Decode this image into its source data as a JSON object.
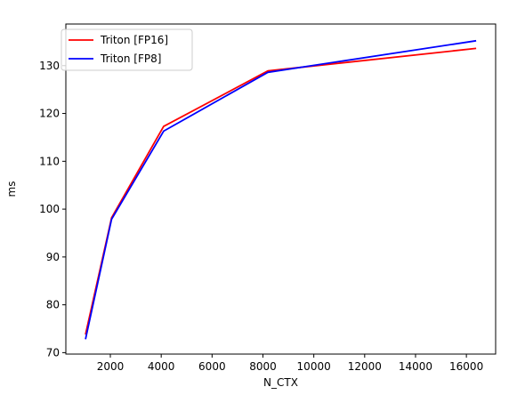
{
  "chart_data": {
    "type": "line",
    "title": "",
    "xlabel": "N_CTX",
    "ylabel": "ms",
    "xlim": [
      250,
      17150
    ],
    "ylim": [
      69.7,
      138.7
    ],
    "xticks": [
      2000,
      4000,
      6000,
      8000,
      10000,
      12000,
      14000,
      16000
    ],
    "xtick_labels": [
      "2000",
      "4000",
      "6000",
      "8000",
      "10000",
      "12000",
      "14000",
      "16000"
    ],
    "yticks": [
      70,
      80,
      90,
      100,
      110,
      120,
      130
    ],
    "ytick_labels": [
      "70",
      "80",
      "90",
      "100",
      "110",
      "120",
      "130"
    ],
    "grid": false,
    "legend_position": "top-left",
    "series": [
      {
        "name": "Triton [FP16]",
        "color": "#ff0000",
        "x": [
          1024,
          2048,
          4096,
          8192,
          16384
        ],
        "y": [
          73.8,
          98.2,
          117.3,
          128.9,
          133.6
        ]
      },
      {
        "name": "Triton [FP8]",
        "color": "#0000ff",
        "x": [
          1024,
          2048,
          4096,
          8192,
          16384
        ],
        "y": [
          72.8,
          97.9,
          116.3,
          128.6,
          135.2
        ]
      }
    ]
  }
}
